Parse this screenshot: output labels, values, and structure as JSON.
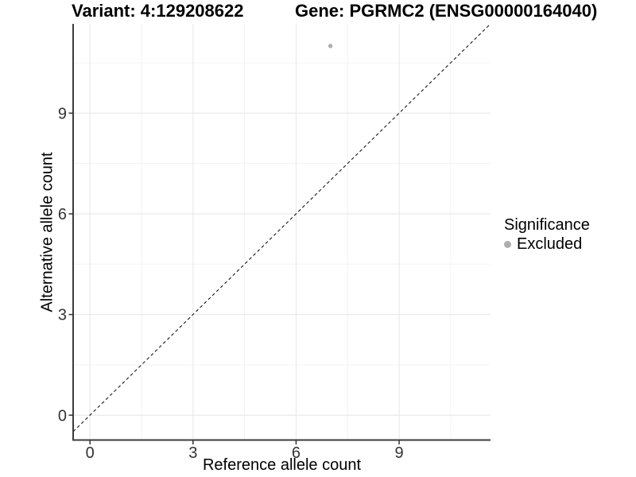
{
  "header": {
    "variant_title": "Variant: 4:129208622",
    "gene_title": "Gene: PGRMC2 (ENSG00000164040)"
  },
  "chart_data": {
    "type": "scatter",
    "xlabel": "Reference allele count",
    "ylabel": "Alternative allele count",
    "x_ticks": [
      0,
      3,
      6,
      9
    ],
    "y_ticks": [
      0,
      3,
      6,
      9
    ],
    "x_minor_gridlines": [
      1.5,
      4.5,
      7.5,
      10.5
    ],
    "y_minor_gridlines": [
      1.5,
      4.5,
      7.5,
      10.5
    ],
    "xlim": [
      -0.49,
      11.66
    ],
    "ylim": [
      -0.74,
      11.66
    ],
    "grid": "major and minor on, white background",
    "points": [
      {
        "x": 7,
        "y": 11,
        "significance": "Excluded"
      }
    ],
    "identity_line": {
      "slope": 1,
      "intercept": 0,
      "style": "dashed",
      "color": "#1a1a1a"
    },
    "legend": {
      "position": "right",
      "title": "Significance",
      "items": [
        {
          "label": "Excluded",
          "color": "#aeaeae"
        }
      ]
    },
    "colors": {
      "background": "#ffffff",
      "grid_major": "#e6e6e6",
      "grid_minor": "#f3f3f3",
      "axis_line": "#3c3c3c",
      "tick_mark": "#333333",
      "tick_text": "#333333",
      "point": "#aeaeae"
    }
  }
}
